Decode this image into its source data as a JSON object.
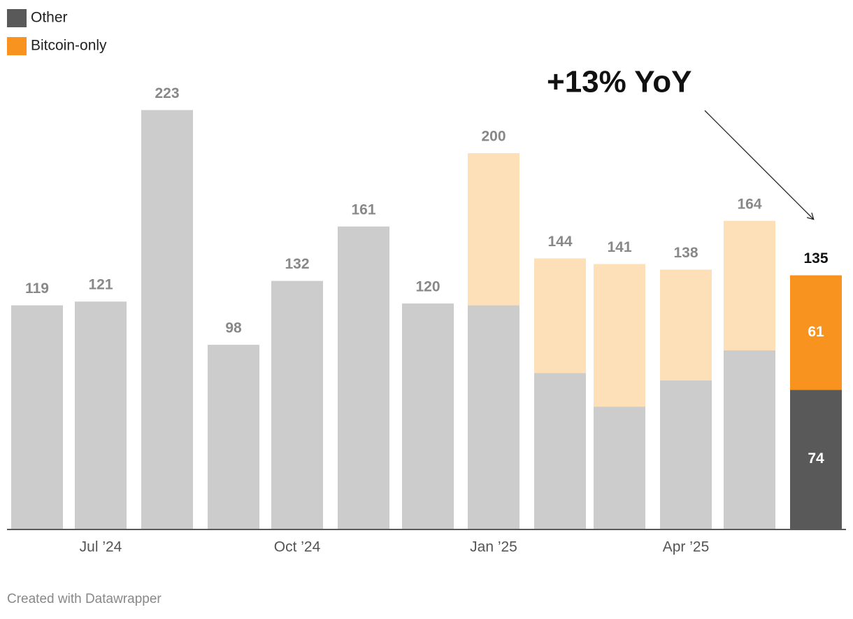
{
  "chart_data": {
    "type": "stacked_bar",
    "annotation": "+13% YoY",
    "credit": "Created with Datawrapper",
    "categories": [
      null,
      "Jul ’24",
      null,
      null,
      "Oct ’24",
      null,
      null,
      "Jan ’25",
      null,
      null,
      "Apr ’25",
      null,
      null
    ],
    "series": [
      {
        "name": "Other",
        "color": "#595959",
        "past_color": "#cccccc",
        "values": [
          119,
          121,
          223,
          98,
          132,
          161,
          120,
          119,
          83,
          65,
          79,
          95,
          74
        ]
      },
      {
        "name": "Bitcoin-only",
        "color": "#f7931e",
        "past_color": "#fddfb8",
        "values": [
          null,
          null,
          null,
          null,
          null,
          null,
          null,
          81,
          61,
          76,
          59,
          69,
          61
        ]
      }
    ],
    "totals": [
      119,
      121,
      223,
      98,
      132,
      161,
      120,
      200,
      144,
      141,
      138,
      164,
      135
    ],
    "ylim": [
      0,
      225
    ]
  }
}
